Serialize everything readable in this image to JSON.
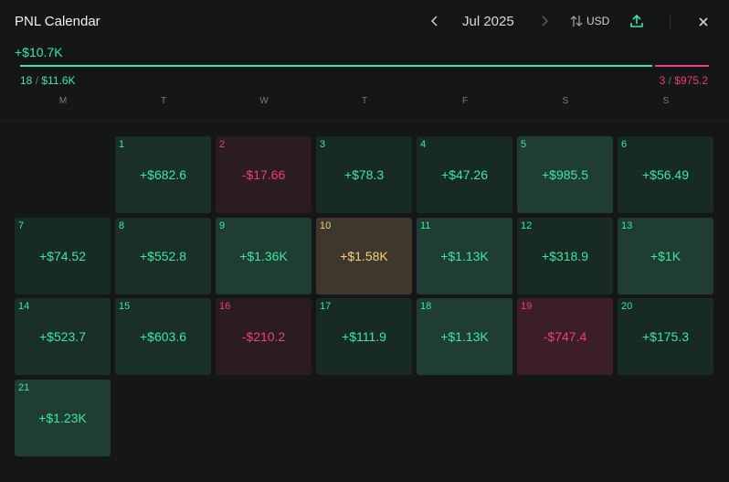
{
  "header": {
    "title": "PNL Calendar",
    "month": "Jul 2025",
    "currency": "USD"
  },
  "summary": {
    "total": "+$10.7K",
    "positive_days": "18",
    "positive_amount": "$11.6K",
    "negative_days": "3",
    "negative_amount": "$975.2"
  },
  "weekdays": [
    "M",
    "T",
    "W",
    "T",
    "F",
    "S",
    "S"
  ],
  "days": [
    {
      "day": "1",
      "value": "+$682.6"
    },
    {
      "day": "2",
      "value": "-$17.66"
    },
    {
      "day": "3",
      "value": "+$78.3"
    },
    {
      "day": "4",
      "value": "+$47.26"
    },
    {
      "day": "5",
      "value": "+$985.5"
    },
    {
      "day": "6",
      "value": "+$56.49"
    },
    {
      "day": "7",
      "value": "+$74.52"
    },
    {
      "day": "8",
      "value": "+$552.8"
    },
    {
      "day": "9",
      "value": "+$1.36K"
    },
    {
      "day": "10",
      "value": "+$1.58K"
    },
    {
      "day": "11",
      "value": "+$1.13K"
    },
    {
      "day": "12",
      "value": "+$318.9"
    },
    {
      "day": "13",
      "value": "+$1K"
    },
    {
      "day": "14",
      "value": "+$523.7"
    },
    {
      "day": "15",
      "value": "+$603.6"
    },
    {
      "day": "16",
      "value": "-$210.2"
    },
    {
      "day": "17",
      "value": "+$111.9"
    },
    {
      "day": "18",
      "value": "+$1.13K"
    },
    {
      "day": "19",
      "value": "-$747.4"
    },
    {
      "day": "20",
      "value": "+$175.3"
    },
    {
      "day": "21",
      "value": "+$1.23K"
    }
  ],
  "colors": {
    "positive": "#3ee6a4",
    "negative": "#ef3e76",
    "best_day": "#f2d27a",
    "background": "#151618"
  }
}
